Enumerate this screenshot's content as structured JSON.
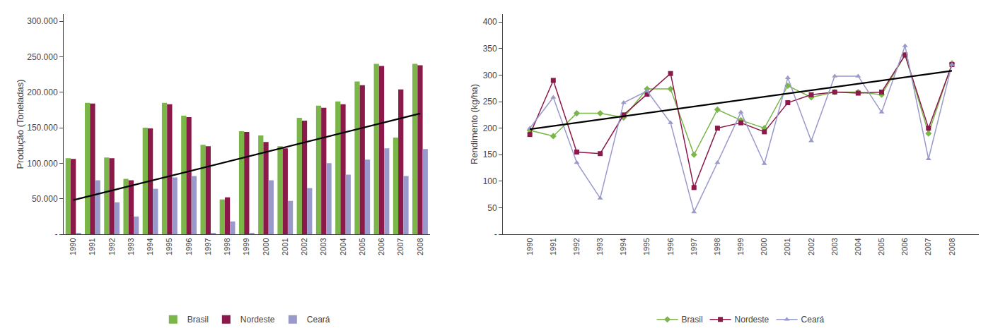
{
  "chart_data": [
    {
      "type": "bar",
      "ylabel": "Produção (Toneladas)",
      "categories": [
        "1990",
        "1991",
        "1992",
        "1993",
        "1994",
        "1995",
        "1996",
        "1997",
        "1998",
        "1999",
        "2000",
        "2001",
        "2002",
        "2003",
        "2004",
        "2005",
        "2006",
        "2007",
        "2008"
      ],
      "series": [
        {
          "name": "Brasil",
          "color": "#7ab648",
          "values": [
            107000,
            185000,
            108000,
            78000,
            150000,
            185000,
            167000,
            126000,
            49000,
            145000,
            139000,
            124000,
            164000,
            181000,
            187000,
            215000,
            240000,
            136000,
            240000
          ]
        },
        {
          "name": "Nordeste",
          "color": "#8b1a4a",
          "values": [
            106000,
            184000,
            107000,
            76000,
            149000,
            183000,
            165000,
            124000,
            52000,
            144000,
            130000,
            121000,
            160000,
            178000,
            183000,
            210000,
            237000,
            204000,
            238000
          ]
        },
        {
          "name": "Ceará",
          "color": "#9999cc",
          "values": [
            1000,
            76000,
            45000,
            25000,
            64000,
            80000,
            82000,
            1000,
            18000,
            1000,
            76000,
            47000,
            65000,
            100000,
            84000,
            105000,
            121000,
            82000,
            120000
          ]
        }
      ],
      "trend_line": {
        "categories": [
          "1990",
          "2008"
        ],
        "values": [
          48000,
          170000
        ],
        "color": "#000000"
      },
      "ylim": [
        0,
        310000
      ],
      "yticks": [
        {
          "value": 0,
          "label": "-"
        },
        {
          "value": 50000,
          "label": "50.000"
        },
        {
          "value": 100000,
          "label": "100.000"
        },
        {
          "value": 150000,
          "label": "150.000"
        },
        {
          "value": 200000,
          "label": "200.000"
        },
        {
          "value": 250000,
          "label": "250.000"
        },
        {
          "value": 300000,
          "label": "300.000"
        }
      ],
      "grid": false
    },
    {
      "type": "line",
      "ylabel": "Rendimento (kg/ha)",
      "categories": [
        "1990",
        "1991",
        "1992",
        "1993",
        "1994",
        "1995",
        "1996",
        "1997",
        "1998",
        "1999",
        "2000",
        "2001",
        "2002",
        "2003",
        "2004",
        "2005",
        "2006",
        "2007",
        "2008"
      ],
      "series": [
        {
          "name": "Brasil",
          "color": "#7ab648",
          "marker": "diamond",
          "values": [
            196,
            185,
            228,
            228,
            220,
            274,
            274,
            150,
            235,
            215,
            200,
            280,
            258,
            268,
            268,
            263,
            338,
            190,
            322
          ]
        },
        {
          "name": "Nordeste",
          "color": "#8b1a4a",
          "marker": "square",
          "values": [
            188,
            290,
            155,
            152,
            225,
            264,
            303,
            88,
            200,
            210,
            193,
            248,
            263,
            268,
            266,
            268,
            338,
            200,
            320
          ]
        },
        {
          "name": "Ceará",
          "color": "#9999cc",
          "marker": "triangle-up",
          "values": [
            200,
            258,
            135,
            68,
            248,
            270,
            210,
            42,
            135,
            230,
            133,
            295,
            176,
            298,
            298,
            230,
            355,
            142,
            320
          ]
        }
      ],
      "trend_line": {
        "categories": [
          "1990",
          "2008"
        ],
        "values": [
          198,
          308
        ],
        "color": "#000000"
      },
      "ylim": [
        0,
        415
      ],
      "yticks": [
        {
          "value": 0,
          "label": "-"
        },
        50,
        100,
        150,
        200,
        250,
        300,
        350,
        400
      ],
      "grid": false
    }
  ]
}
